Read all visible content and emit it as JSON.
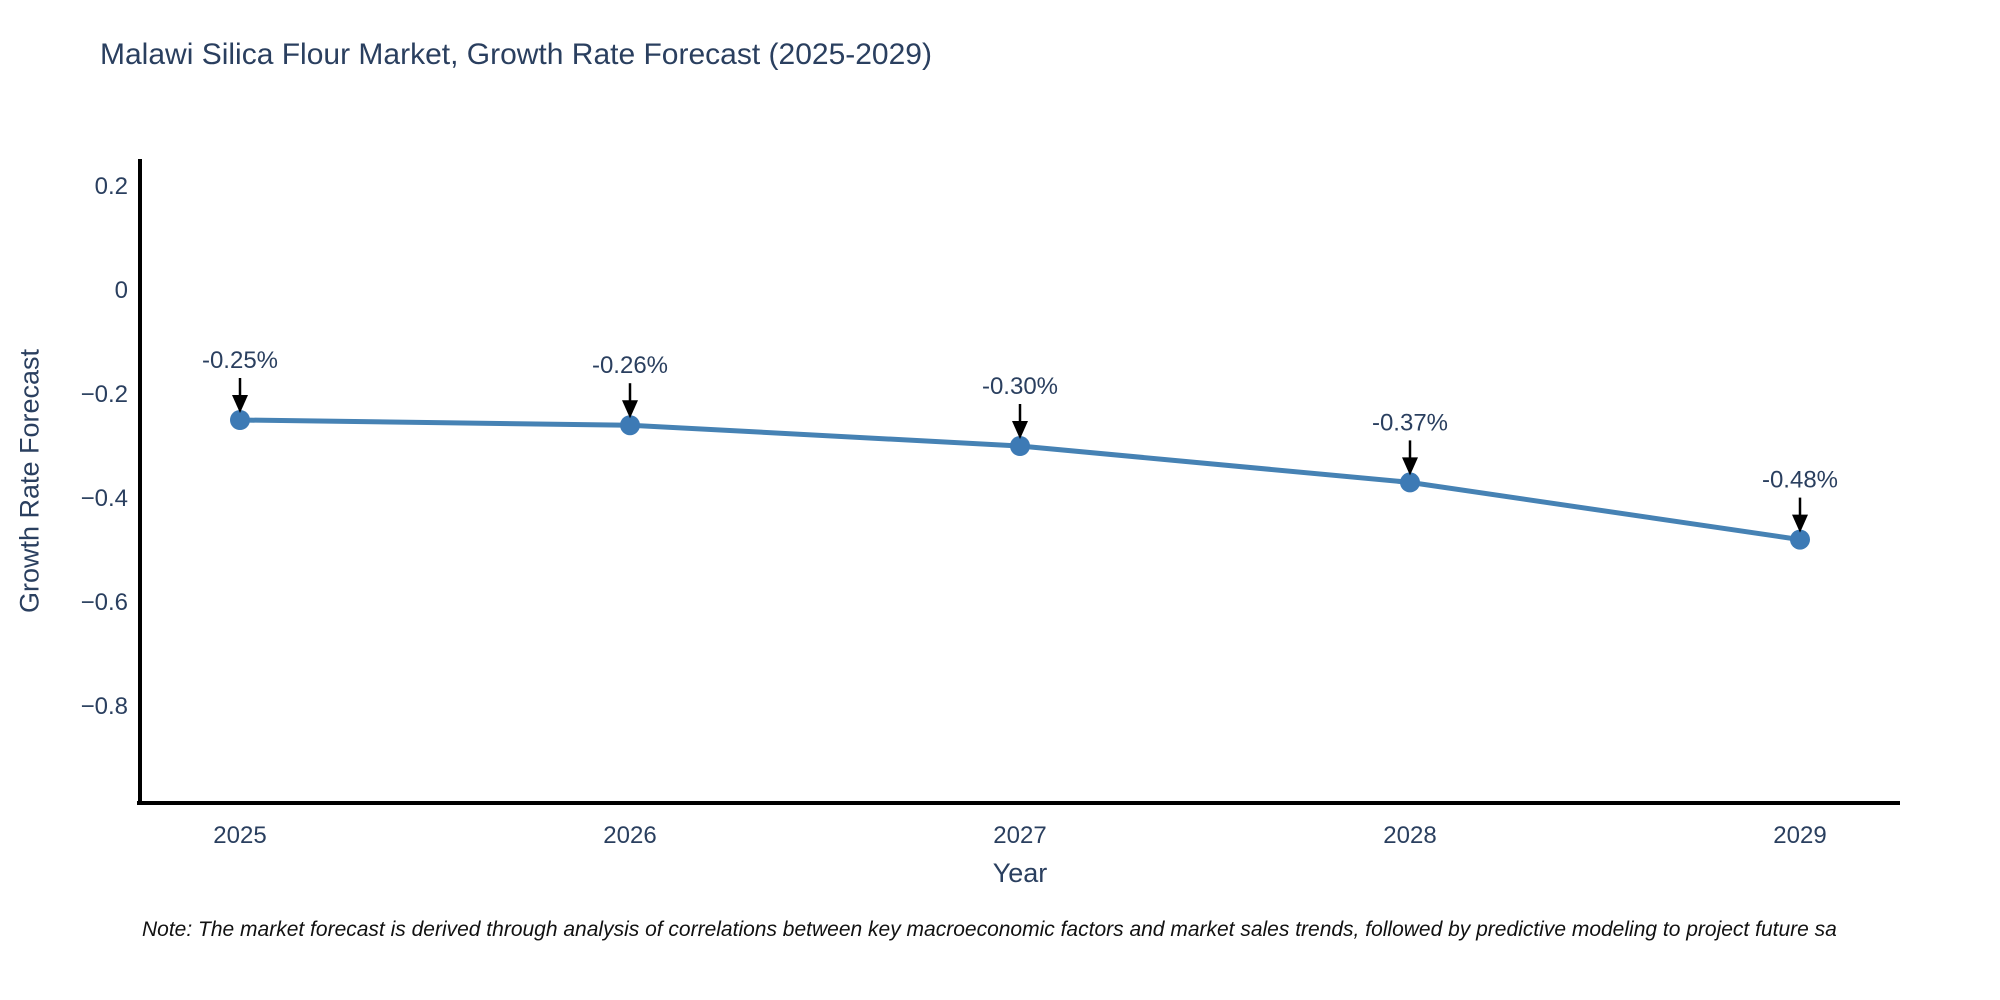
{
  "title": "Malawi Silica Flour Market, Growth Rate Forecast (2025-2029)",
  "note": "Note: The market forecast is derived through analysis of correlations between key macroeconomic factors and market sales trends, followed by predictive modeling to project future sa",
  "chart_data": {
    "type": "line",
    "title": "Malawi Silica Flour Market, Growth Rate Forecast (2025-2029)",
    "xlabel": "Year",
    "ylabel": "Growth Rate Forecast",
    "categories": [
      "2025",
      "2026",
      "2027",
      "2028",
      "2029"
    ],
    "series": [
      {
        "name": "Growth Rate Forecast",
        "values": [
          -0.25,
          -0.26,
          -0.3,
          -0.37,
          -0.48
        ],
        "point_labels": [
          "-0.25%",
          "-0.26%",
          "-0.30%",
          "-0.37%",
          "-0.48%"
        ]
      }
    ],
    "ytick_values": [
      0.2,
      0,
      -0.2,
      -0.4,
      -0.6,
      -0.8
    ],
    "ytick_labels": [
      "0.2",
      "0",
      "−0.2",
      "−0.4",
      "−0.6",
      "−0.8"
    ],
    "ylim": [
      -0.99,
      0.25
    ],
    "grid": false,
    "legend_position": "none",
    "colors": {
      "line": "#4682b4",
      "marker": "#3d7ab5",
      "axis_line": "#000000",
      "tick_text": "#2a3f5f",
      "annotation_text": "#2a3f5f",
      "annotation_arrow": "#000000"
    }
  }
}
